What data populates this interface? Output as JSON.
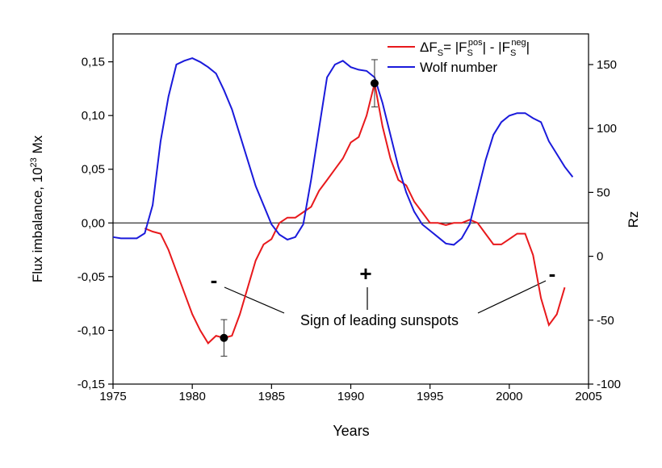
{
  "chart_data": {
    "type": "line",
    "xlabel": "Years",
    "ylabel": [
      "Flux imbalance, 10",
      "23",
      " Mx"
    ],
    "y2label": "Rz",
    "x": [
      1975,
      1975.5,
      1976,
      1976.5,
      1977,
      1977.5,
      1978,
      1978.5,
      1979,
      1979.5,
      1980,
      1980.5,
      1981,
      1981.5,
      1982,
      1982.5,
      1983,
      1983.5,
      1984,
      1984.5,
      1985,
      1985.5,
      1986,
      1986.5,
      1987,
      1987.5,
      1988,
      1988.5,
      1989,
      1989.5,
      1990,
      1990.5,
      1991,
      1991.5,
      1992,
      1992.5,
      1993,
      1993.5,
      1994,
      1994.5,
      1995,
      1995.5,
      1996,
      1996.5,
      1997,
      1997.5,
      1998,
      1998.5,
      1999,
      1999.5,
      2000,
      2000.5,
      2001,
      2001.5,
      2002,
      2002.5,
      2003,
      2003.5,
      2004
    ],
    "series": [
      {
        "name": [
          "ΔF",
          "S",
          "= |F",
          "S",
          "pos",
          "| - |F",
          "S",
          "neg",
          "|"
        ],
        "color": "#e8191c",
        "values": [
          null,
          null,
          null,
          null,
          -0.005,
          -0.008,
          -0.01,
          -0.025,
          -0.045,
          -0.065,
          -0.085,
          -0.1,
          -0.112,
          -0.105,
          -0.107,
          -0.105,
          -0.085,
          -0.06,
          -0.035,
          -0.02,
          -0.015,
          0,
          0.005,
          0.005,
          0.01,
          0.015,
          0.03,
          0.04,
          0.05,
          0.06,
          0.075,
          0.08,
          0.1,
          0.13,
          0.09,
          0.06,
          0.04,
          0.035,
          0.02,
          0.01,
          0,
          0,
          -0.002,
          0,
          0,
          0.003,
          0,
          -0.01,
          -0.02,
          -0.02,
          -0.015,
          -0.01,
          -0.01,
          -0.03,
          -0.07,
          -0.095,
          -0.085,
          -0.06,
          null
        ]
      },
      {
        "name": "Wolf number",
        "color": "#1a1adb",
        "axis": "y2",
        "values": [
          15,
          14,
          14,
          14,
          18,
          40,
          90,
          125,
          150,
          153,
          155,
          152,
          148,
          143,
          130,
          115,
          95,
          75,
          55,
          40,
          25,
          17,
          13,
          15,
          25,
          60,
          100,
          140,
          150,
          153,
          148,
          146,
          145,
          140,
          120,
          95,
          70,
          50,
          35,
          25,
          20,
          15,
          10,
          9,
          14,
          25,
          50,
          75,
          95,
          105,
          110,
          112,
          112,
          108,
          105,
          90,
          80,
          70,
          62
        ]
      }
    ],
    "error_points": [
      {
        "x": 1982,
        "value": -0.107,
        "error": 0.017
      },
      {
        "x": 1991.5,
        "value": 0.13,
        "error": 0.022
      }
    ],
    "annotations": [
      "-",
      "+",
      "-",
      "Sign of leading sunspots"
    ],
    "xlim": [
      1975,
      2005
    ],
    "xticks": [
      1975,
      1980,
      1985,
      1990,
      1995,
      2000,
      2005
    ],
    "ylim": [
      -0.15,
      0.176
    ],
    "yticks": [
      {
        "value": -0.15,
        "label": "-0,15"
      },
      {
        "value": -0.1,
        "label": "-0,10"
      },
      {
        "value": -0.05,
        "label": "-0,05"
      },
      {
        "value": 0,
        "label": "0,00"
      },
      {
        "value": 0.05,
        "label": "0,05"
      },
      {
        "value": 0.1,
        "label": "0,10"
      },
      {
        "value": 0.15,
        "label": "0,15"
      }
    ],
    "y2lim": [
      -100,
      174
    ],
    "y2ticks": [
      -100,
      -50,
      0,
      50,
      100,
      150
    ],
    "grid": false,
    "zero_line": true,
    "legend": "upper right"
  }
}
